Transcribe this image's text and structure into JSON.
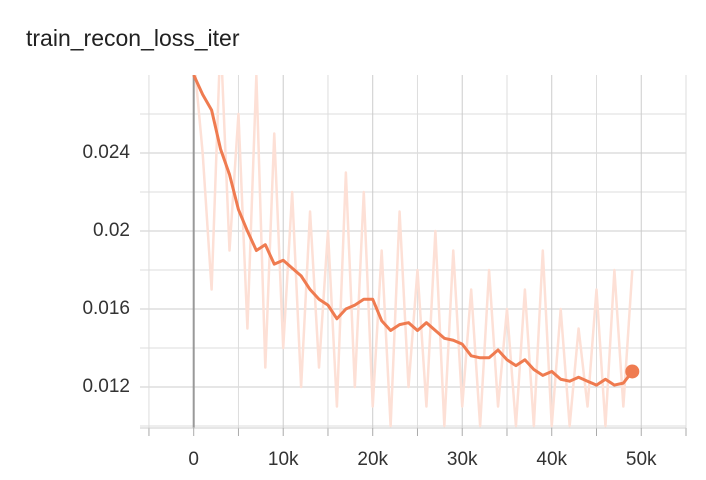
{
  "chart_data": {
    "type": "line",
    "title": "train_recon_loss_iter",
    "x": [
      0,
      1000,
      2000,
      3000,
      4000,
      5000,
      6000,
      7000,
      8000,
      9000,
      10000,
      11000,
      12000,
      13000,
      14000,
      15000,
      16000,
      17000,
      18000,
      19000,
      20000,
      21000,
      22000,
      23000,
      24000,
      25000,
      26000,
      27000,
      28000,
      29000,
      30000,
      31000,
      32000,
      33000,
      34000,
      35000,
      36000,
      37000,
      38000,
      39000,
      40000,
      41000,
      42000,
      43000,
      44000,
      45000,
      46000,
      47000,
      48000,
      49000
    ],
    "series": [
      {
        "name": "raw",
        "color": "#fde0d6",
        "values": [
          0.029,
          0.024,
          0.017,
          0.03,
          0.019,
          0.026,
          0.015,
          0.028,
          0.013,
          0.025,
          0.014,
          0.022,
          0.012,
          0.021,
          0.013,
          0.02,
          0.011,
          0.023,
          0.012,
          0.022,
          0.011,
          0.019,
          0.01,
          0.021,
          0.012,
          0.018,
          0.011,
          0.02,
          0.01,
          0.019,
          0.011,
          0.017,
          0.01,
          0.018,
          0.011,
          0.016,
          0.01,
          0.017,
          0.01,
          0.019,
          0.01,
          0.016,
          0.01,
          0.015,
          0.011,
          0.017,
          0.01,
          0.018,
          0.011,
          0.018
        ]
      },
      {
        "name": "smoothed",
        "color": "#ef7b50",
        "values": [
          0.028,
          0.027,
          0.0262,
          0.0242,
          0.0229,
          0.0211,
          0.02,
          0.019,
          0.0193,
          0.0183,
          0.0185,
          0.0181,
          0.0177,
          0.017,
          0.0165,
          0.0162,
          0.0155,
          0.016,
          0.0162,
          0.0165,
          0.0165,
          0.0154,
          0.0149,
          0.0152,
          0.0153,
          0.0149,
          0.0153,
          0.0149,
          0.0145,
          0.0144,
          0.0142,
          0.0136,
          0.0135,
          0.0135,
          0.0139,
          0.0134,
          0.0131,
          0.0134,
          0.0129,
          0.0126,
          0.0128,
          0.0124,
          0.0123,
          0.0125,
          0.0123,
          0.0121,
          0.0124,
          0.0121,
          0.0122,
          0.0128
        ]
      }
    ],
    "xlim": [
      -6000,
      55000
    ],
    "ylim": [
      0.0099,
      0.028
    ],
    "xticks": [
      0,
      {
        "value": 10000,
        "label": "10k"
      },
      {
        "value": 20000,
        "label": "20k"
      },
      {
        "value": 30000,
        "label": "30k"
      },
      {
        "value": 40000,
        "label": "40k"
      },
      {
        "value": 50000,
        "label": "50k"
      }
    ],
    "xminor": [
      -5000,
      5000,
      15000,
      25000,
      35000,
      45000,
      55000
    ],
    "yticks": [
      0.012,
      0.016,
      0.02,
      0.024
    ],
    "yminor": [
      0.01,
      0.014,
      0.018,
      0.022,
      0.026
    ],
    "grid": true
  }
}
